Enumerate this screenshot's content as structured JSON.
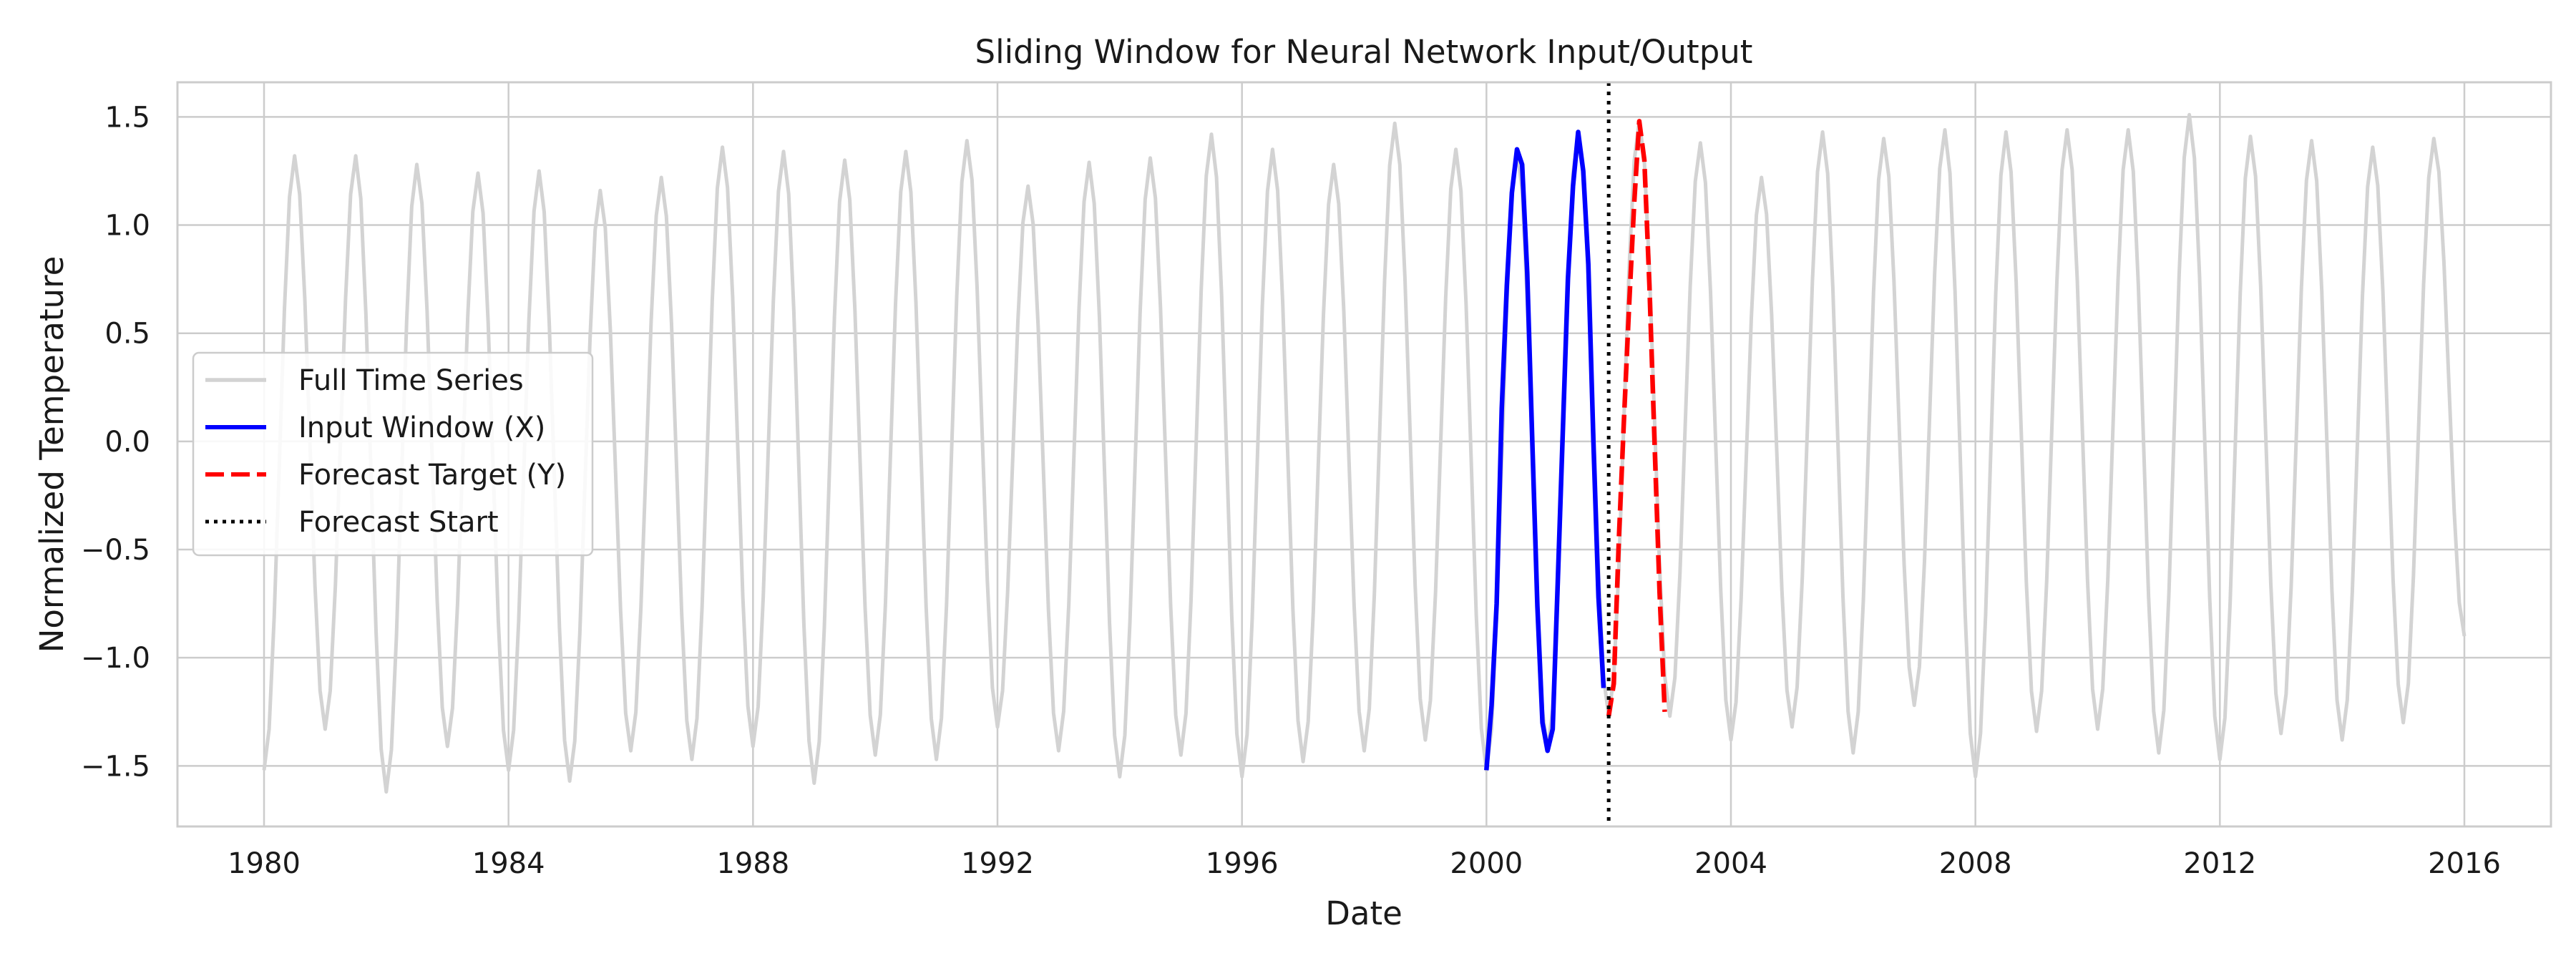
{
  "chart_data": {
    "type": "line",
    "title": "Sliding Window for Neural Network Input/Output",
    "xlabel": "Date",
    "ylabel": "Normalized Temperature",
    "xlim": [
      "1978-08-01",
      "2017-06-01"
    ],
    "ylim": [
      -1.78,
      1.66
    ],
    "x_ticks": [
      "1980",
      "1984",
      "1988",
      "1992",
      "1996",
      "2000",
      "2004",
      "2008",
      "2012",
      "2016"
    ],
    "y_ticks": [
      "−1.5",
      "−1.0",
      "−0.5",
      "0.0",
      "0.5",
      "1.0",
      "1.5"
    ],
    "y_tick_values": [
      -1.5,
      -1.0,
      -0.5,
      0.0,
      0.5,
      1.0,
      1.5
    ],
    "grid": true,
    "legend_position": "center-left",
    "legend": [
      {
        "label": "Full Time Series",
        "style": "solid",
        "color": "#d3d3d3"
      },
      {
        "label": "Input Window (X)",
        "style": "solid",
        "color": "#0000ff"
      },
      {
        "label": "Forecast Target (Y)",
        "style": "dashed",
        "color": "#ff0000"
      },
      {
        "label": "Forecast Start",
        "style": "dotted",
        "color": "#000000"
      }
    ],
    "series": [
      {
        "name": "Full Time Series",
        "color": "#d3d3d3",
        "style": "solid",
        "start_month": "1980-01",
        "frequency": "monthly",
        "annual_peaks": [
          1.32,
          1.32,
          1.28,
          1.24,
          1.25,
          1.16,
          1.22,
          1.36,
          1.34,
          1.3,
          1.34,
          1.39,
          1.18,
          1.29,
          1.31,
          1.42,
          1.35,
          1.28,
          1.47,
          1.35,
          1.35,
          1.43,
          1.48,
          1.38,
          1.22,
          1.43,
          1.4,
          1.44,
          1.43,
          1.44,
          1.44,
          1.51,
          1.41,
          1.39,
          1.36,
          1.4
        ],
        "annual_troughs": [
          -1.52,
          -1.33,
          -1.62,
          -1.41,
          -1.52,
          -1.57,
          -1.43,
          -1.47,
          -1.41,
          -1.58,
          -1.45,
          -1.47,
          -1.32,
          -1.43,
          -1.55,
          -1.45,
          -1.55,
          -1.48,
          -1.43,
          -1.38,
          -1.52,
          -1.43,
          -1.27,
          -1.27,
          -1.38,
          -1.32,
          -1.44,
          -1.22,
          -1.55,
          -1.34,
          -1.33,
          -1.44,
          -1.47,
          -1.35,
          -1.38,
          -1.3
        ],
        "final_value": -0.9
      },
      {
        "name": "Input Window (X)",
        "color": "#0000ff",
        "style": "solid",
        "x": [
          "2000-01",
          "2000-02",
          "2000-03",
          "2000-04",
          "2000-05",
          "2000-06",
          "2000-07",
          "2000-08",
          "2000-09",
          "2000-10",
          "2000-11",
          "2000-12",
          "2001-01",
          "2001-02",
          "2001-03",
          "2001-04",
          "2001-05",
          "2001-06",
          "2001-07",
          "2001-08",
          "2001-09",
          "2001-10",
          "2001-11",
          "2001-12"
        ],
        "y": [
          -1.52,
          -1.22,
          -0.75,
          0.15,
          0.72,
          1.15,
          1.35,
          1.28,
          0.78,
          0.0,
          -0.76,
          -1.3,
          -1.43,
          -1.33,
          -0.65,
          0.05,
          0.75,
          1.18,
          1.43,
          1.25,
          0.82,
          0.0,
          -0.72,
          -1.14
        ]
      },
      {
        "name": "Forecast Target (Y)",
        "color": "#ff0000",
        "style": "dashed",
        "x": [
          "2002-01",
          "2002-02",
          "2002-03",
          "2002-04",
          "2002-05",
          "2002-06",
          "2002-07",
          "2002-08",
          "2002-09",
          "2002-10",
          "2002-11",
          "2002-12"
        ],
        "y": [
          -1.27,
          -1.12,
          -0.45,
          0.1,
          0.62,
          1.1,
          1.48,
          1.3,
          0.72,
          0.0,
          -0.7,
          -1.25
        ]
      }
    ],
    "vlines": [
      {
        "name": "Forecast Start",
        "x": "2002-01-01",
        "color": "#000000",
        "style": "dotted"
      }
    ]
  }
}
